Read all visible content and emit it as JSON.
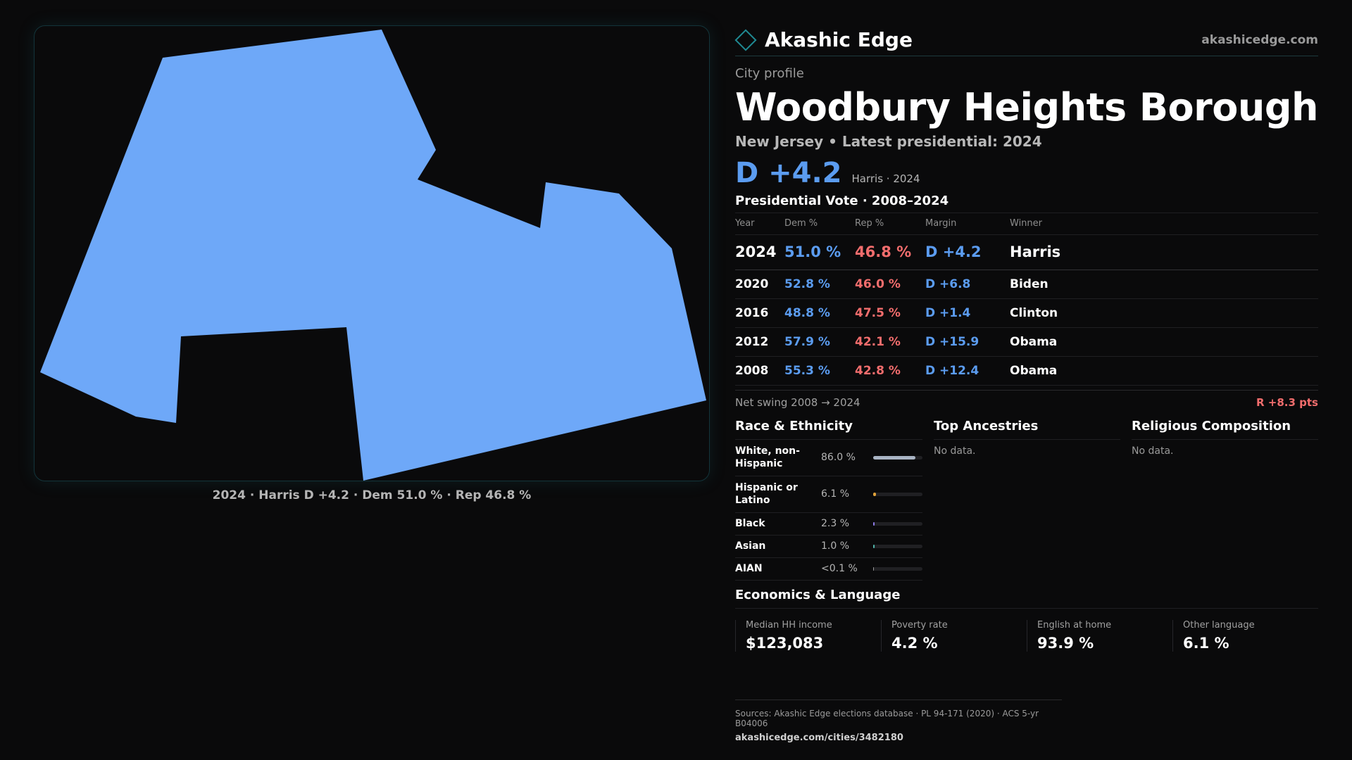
{
  "map": {
    "fill_color": "#6ea8f8",
    "caption": "2024 · Harris D +4.2 · Dem 51.0 % · Rep 46.8 %"
  },
  "brand": {
    "name": "Akashic Edge",
    "site": "akashicedge.com",
    "logo_icon": "diamond-logo-icon",
    "accent_color": "#1f8a93"
  },
  "profile": {
    "eyebrow": "City profile",
    "title": "Woodbury Heights Borough",
    "subtitle": "New Jersey • Latest presidential: 2024",
    "headline_margin": "D +4.2",
    "headline_note": "Harris · 2024"
  },
  "votes": {
    "title": "Presidential Vote · 2008–2024",
    "headers": [
      "Year",
      "Dem %",
      "Rep %",
      "Margin",
      "Winner"
    ],
    "rows": [
      {
        "year": "2024",
        "dem": "51.0 %",
        "rep": "46.8 %",
        "margin": "D +4.2",
        "winner": "Harris"
      },
      {
        "year": "2020",
        "dem": "52.8 %",
        "rep": "46.0 %",
        "margin": "D +6.8",
        "winner": "Biden"
      },
      {
        "year": "2016",
        "dem": "48.8 %",
        "rep": "47.5 %",
        "margin": "D +1.4",
        "winner": "Clinton"
      },
      {
        "year": "2012",
        "dem": "57.9 %",
        "rep": "42.1 %",
        "margin": "D +15.9",
        "winner": "Obama"
      },
      {
        "year": "2008",
        "dem": "55.3 %",
        "rep": "42.8 %",
        "margin": "D +12.4",
        "winner": "Obama"
      }
    ],
    "swing_label": "Net swing 2008 → 2024",
    "swing_value": "R +8.3 pts",
    "dem_color": "#5b9cf0",
    "rep_color": "#f26d6d"
  },
  "race": {
    "title": "Race & Ethnicity",
    "rows": [
      {
        "label": "White, non-Hispanic",
        "value": "86.0 %",
        "share": 0.86,
        "color": "#a9b4c4"
      },
      {
        "label": "Hispanic or Latino",
        "value": "6.1 %",
        "share": 0.061,
        "color": "#e0a23a"
      },
      {
        "label": "Black",
        "value": "2.3 %",
        "share": 0.023,
        "color": "#8c7ae6"
      },
      {
        "label": "Asian",
        "value": "1.0 %",
        "share": 0.01,
        "color": "#4fb3a9"
      },
      {
        "label": "AIAN",
        "value": "<0.1 %",
        "share": 0.0,
        "color": "#9a9a9a"
      }
    ]
  },
  "ancestries": {
    "title": "Top Ancestries",
    "empty": "No data."
  },
  "religion": {
    "title": "Religious Composition",
    "empty": "No data."
  },
  "economics": {
    "title": "Economics & Language",
    "cards": [
      {
        "label": "Median HH income",
        "value": "$123,083"
      },
      {
        "label": "Poverty rate",
        "value": "4.2 %"
      },
      {
        "label": "English at home",
        "value": "93.9 %"
      },
      {
        "label": "Other language",
        "value": "6.1 %"
      }
    ]
  },
  "footer": {
    "sources": "Sources: Akashic Edge elections database · PL 94-171 (2020) · ACS 5-yr B04006",
    "url": "akashicedge.com/cities/3482180"
  }
}
